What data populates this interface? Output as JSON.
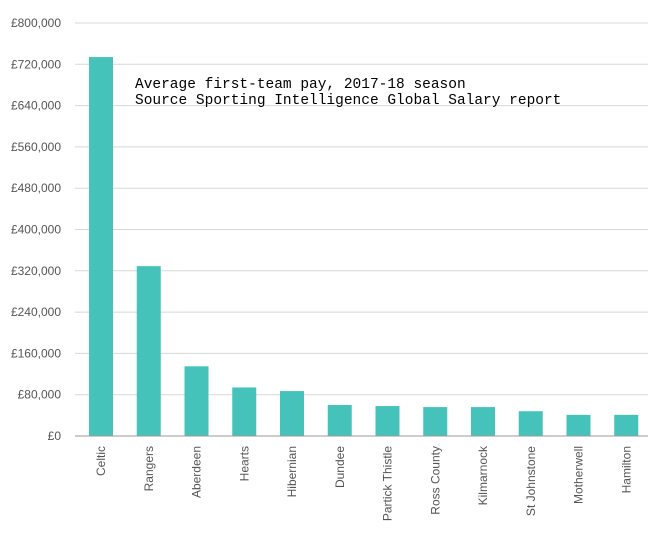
{
  "chart_data": {
    "type": "bar",
    "title": "",
    "xlabel": "",
    "ylabel": "",
    "categories": [
      "Celtic",
      "Rangers",
      "Aberdeen",
      "Hearts",
      "Hibernian",
      "Dundee",
      "Partick Thistle",
      "Ross County",
      "Kilmarnock",
      "St Johnstone",
      "Motherwell",
      "Hamilton"
    ],
    "values": [
      734000,
      329000,
      135000,
      94000,
      87000,
      60000,
      58000,
      56000,
      56000,
      48000,
      41000,
      41000
    ],
    "ylim": [
      0,
      800000
    ],
    "yticks": [
      0,
      80000,
      160000,
      240000,
      320000,
      400000,
      480000,
      560000,
      640000,
      720000,
      800000
    ],
    "ytick_labels": [
      "£0",
      "£80,000",
      "£160,000",
      "£240,000",
      "£320,000",
      "£400,000",
      "£480,000",
      "£560,000",
      "£640,000",
      "£720,000",
      "£800,000"
    ],
    "annotation_lines": [
      "Average first-team pay, 2017-18 season",
      "Source Sporting Intelligence Global Salary report"
    ],
    "grid": true,
    "legend": "none",
    "colors": {
      "bar": "#45c3bb",
      "grid": "#d8d8d8",
      "axis": "#999999",
      "text": "#555555"
    }
  }
}
